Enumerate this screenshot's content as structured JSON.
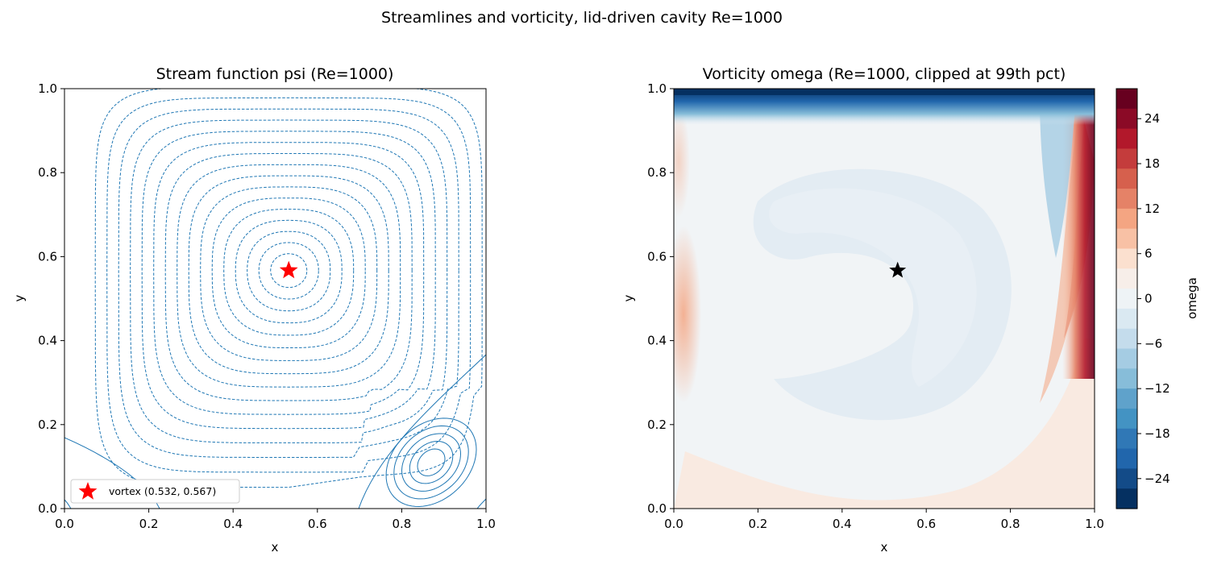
{
  "figure": {
    "suptitle": "Streamlines and vorticity, lid-driven cavity Re=1000"
  },
  "chart_data": [
    {
      "type": "contour",
      "title": "Stream function psi (Re=1000)",
      "xlabel": "x",
      "ylabel": "y",
      "xlim": [
        0.0,
        1.0
      ],
      "ylim": [
        0.0,
        1.0
      ],
      "xticks": [
        "0.0",
        "0.2",
        "0.4",
        "0.6",
        "0.8",
        "1.0"
      ],
      "yticks": [
        "0.0",
        "0.2",
        "0.4",
        "0.6",
        "0.8",
        "1.0"
      ],
      "grid": false,
      "line_color": "#1f77b4",
      "primary_vortex": {
        "x": 0.532,
        "y": 0.567,
        "marker": "star",
        "color": "#ff0000"
      },
      "legend": {
        "label": "vortex (0.532, 0.567)",
        "placement": "lower-left"
      },
      "dashed_contour_count": 16,
      "secondary_vortex": {
        "x": 0.87,
        "y": 0.11
      }
    },
    {
      "type": "heatmap",
      "title": "Vorticity omega (Re=1000, clipped at 99th pct)",
      "xlabel": "x",
      "ylabel": "y",
      "xlim": [
        0.0,
        1.0
      ],
      "ylim": [
        0.0,
        1.0
      ],
      "xticks": [
        "0.0",
        "0.2",
        "0.4",
        "0.6",
        "0.8",
        "1.0"
      ],
      "yticks": [
        "0.0",
        "0.2",
        "0.4",
        "0.6",
        "0.8",
        "1.0"
      ],
      "colormap": "RdBu_r",
      "vortex_marker": {
        "x": 0.532,
        "y": 0.567,
        "marker": "star",
        "color": "#000000"
      },
      "colorbar": {
        "label": "omega",
        "range": [
          -28,
          28
        ],
        "ticks": [
          "24",
          "18",
          "12",
          "6",
          "0",
          "−6",
          "−12",
          "−18",
          "−24"
        ],
        "tick_values": [
          24,
          18,
          12,
          6,
          0,
          -6,
          -12,
          -18,
          -24
        ],
        "colors_top_to_bottom": [
          "#67001f",
          "#8b0a26",
          "#b2182b",
          "#c43c3c",
          "#d6604d",
          "#e58267",
          "#f4a582",
          "#f8c1a5",
          "#fbe0cf",
          "#f7eee9",
          "#eef3f6",
          "#dae9f2",
          "#c4dcec",
          "#a5cce3",
          "#87bdd9",
          "#5fa2cb",
          "#4393c3",
          "#3078b6",
          "#2166ac",
          "#134b88",
          "#053061"
        ]
      }
    }
  ]
}
